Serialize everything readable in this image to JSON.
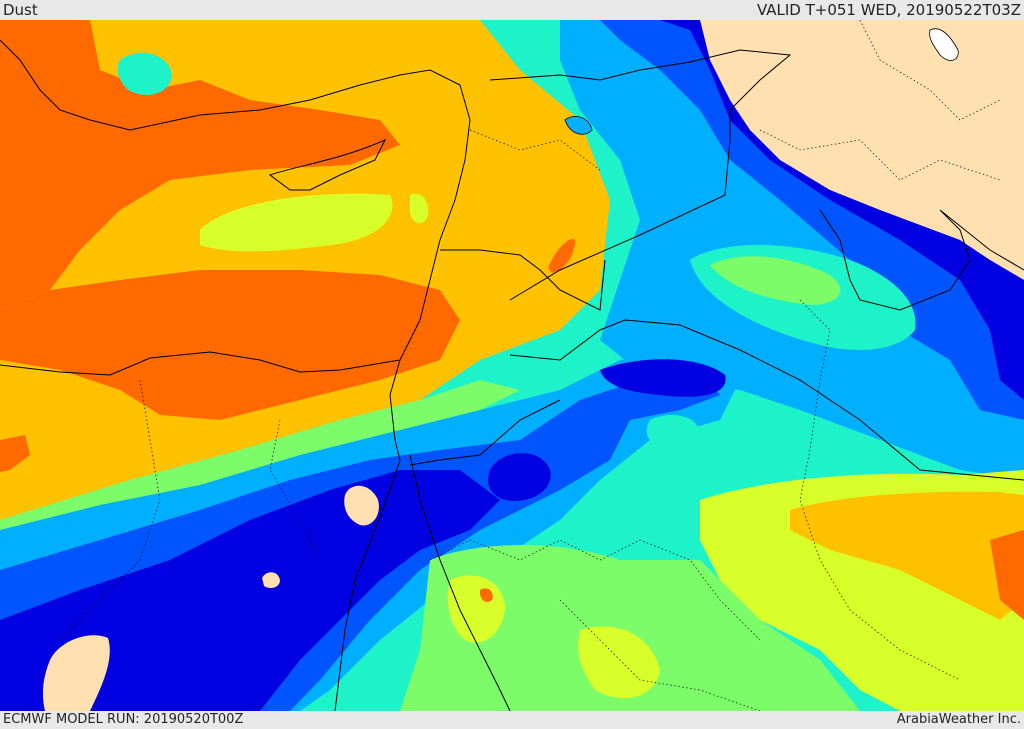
{
  "header": {
    "title": "Dust",
    "valid_time": "VALID T+051 WED, 20190522T03Z"
  },
  "footer": {
    "model_run": "ECMWF MODEL RUN: 20190520T00Z",
    "credit": "ArabiaWeather Inc."
  },
  "colors": {
    "very_high": "#ff6a00",
    "high": "#ffc200",
    "mid_high": "#d8ff2a",
    "mid": "#7dfc6a",
    "low_mid": "#1ef2c8",
    "low": "#00b0ff",
    "very_low": "#0055ff",
    "minimal": "#0000e0",
    "land_no_data": "#ffe0b0",
    "water": "#ffffff"
  },
  "map": {
    "layer": "dust concentration",
    "borders": "black lines",
    "internal_borders": "dotted"
  }
}
